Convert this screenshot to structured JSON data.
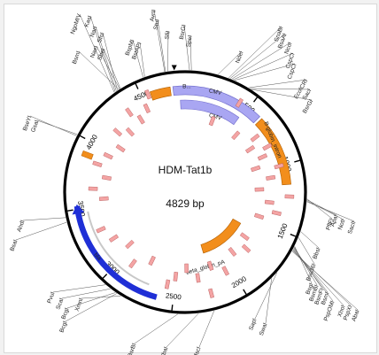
{
  "plasmid": {
    "name": "HDM-Tat1b",
    "length_label": "4829 bp",
    "length_bp": 4829
  },
  "colors": {
    "backbone": "#000000",
    "promoter": "#a9a6f2",
    "promoter_stroke": "#6a66c8",
    "cds": "#f28e1c",
    "cds_stroke": "#b35f00",
    "resistance": "#1f2fd6",
    "primer": "#f4a4a4",
    "primer_stroke": "#b35656",
    "lacz": "#c8c8c8"
  },
  "ticks": [
    {
      "label": "500",
      "bp": 500
    },
    {
      "label": "1000",
      "bp": 1000
    },
    {
      "label": "1500",
      "bp": 1500
    },
    {
      "label": "2000",
      "bp": 2000
    },
    {
      "label": "2500",
      "bp": 2500
    },
    {
      "label": "3000",
      "bp": 3000
    },
    {
      "label": "3500",
      "bp": 3500
    },
    {
      "label": "4000",
      "bp": 4000
    },
    {
      "label": "4500",
      "bp": 4500
    }
  ],
  "features": [
    {
      "label": "B...",
      "type": "promoter_box"
    },
    {
      "label": "CMV",
      "type": "promoter"
    },
    {
      "label": "CMV",
      "type": "promoter"
    },
    {
      "label": "B-globin_intron",
      "type": "cds"
    },
    {
      "label": "beta_globin_pA",
      "type": "cds"
    },
    {
      "label": "bla",
      "type": "resistance"
    }
  ],
  "sites": {
    "top_left": [
      "NgoMIV",
      "KasI",
      "NarI",
      "SfoI",
      "BsmI",
      "NaeI",
      "SbeI"
    ],
    "top": [
      "BspMI",
      "BstAPI",
      "AvrII",
      "StuI",
      "SfiI",
      "BsrGI",
      "SpeI",
      "NdeI"
    ],
    "top_right": [
      "SnaBI",
      "BsaAI",
      "NcoI",
      "CspCI",
      "CspCI",
      "EcoICRI",
      "SacI",
      "BsrGI"
    ],
    "right": [
      "PflFI",
      "ApaI",
      "NotI",
      "SacII",
      "BbsI",
      "Bsu36I",
      "BsgI",
      "BsmBI",
      "BsmFI",
      "BsmI",
      "PspOMI",
      "XhoI",
      "PspXI",
      "AbaI"
    ],
    "bottom": [
      "SapI",
      "SwaI",
      "MscI",
      "XbaI",
      "BsrBI"
    ],
    "left": [
      "BseYI",
      "GsaI",
      "AhdI",
      "BsaI",
      "PvuI",
      "ScaI",
      "BcgI",
      "BcgI",
      "XmnI"
    ]
  }
}
